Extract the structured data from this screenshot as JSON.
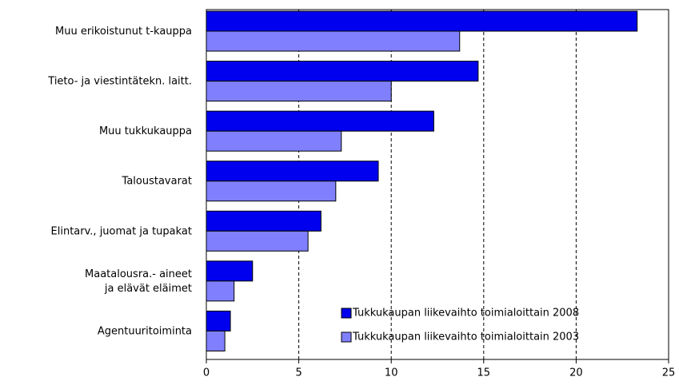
{
  "chart_data": {
    "type": "bar",
    "orientation": "horizontal",
    "categories": [
      "Muu erikoistunut t-kauppa",
      "Tieto- ja viestintätekn. laitt.",
      "Muu tukkukauppa",
      "Taloustavarat",
      "Elintarv., juomat ja tupakat",
      "Maatalousra.- aineet\nja elävät eläimet",
      "Agentuuritoiminta"
    ],
    "series": [
      {
        "name": "Tukkukaupan liikevaihto toimialoittain 2008",
        "color": "#0000ee",
        "values": [
          23.3,
          14.7,
          12.3,
          9.3,
          6.2,
          2.5,
          1.3
        ]
      },
      {
        "name": "Tukkukaupan liikevaihto toimialoittain 2003",
        "color": "#8080ff",
        "values": [
          13.7,
          10.0,
          7.3,
          7.0,
          5.5,
          1.5,
          1.0
        ]
      }
    ],
    "xlim": [
      0,
      25
    ],
    "xticks": [
      0,
      5,
      10,
      15,
      20,
      25
    ],
    "grid": true,
    "legend": "lower right"
  }
}
